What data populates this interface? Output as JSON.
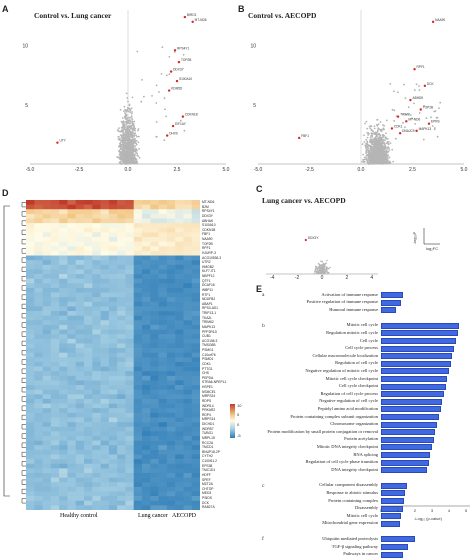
{
  "panels": {
    "a": {
      "letter": "A",
      "title": "Control vs. Lung cancer",
      "x_ticks": [
        "-5.0",
        "-2.5",
        "0.0",
        "2.5",
        "5.0"
      ],
      "y_ticks": [
        "5",
        "10"
      ],
      "genes": [
        "BIRC5",
        "MT-ND6",
        "RPS4Y1",
        "TOP2B",
        "DDX3Y",
        "S100A10",
        "KDM5D",
        "CDKN1B",
        "EIF1AY",
        "UTY",
        "DHX9"
      ]
    },
    "b": {
      "letter": "B",
      "title": "Control vs. AECOPD",
      "x_ticks": [
        "-5.0",
        "-2.5",
        "0.0",
        "2.5",
        "5.0"
      ],
      "y_ticks": [
        "5",
        "10"
      ],
      "genes": [
        "NAA90",
        "RPF1",
        "DCK",
        "ABHD5",
        "TOP2B",
        "TRIM8",
        "MT-ND6",
        "CDK1",
        "FBF1",
        "MAPK13",
        "EPRS",
        "DNAJC9"
      ]
    },
    "c": {
      "letter": "C",
      "title": "Lung cancer vs. AECOPD",
      "x_ticks": [
        "-4",
        "-2",
        "0",
        "2",
        "4"
      ],
      "axis_y_label": "-log₁₀P",
      "axis_x_label": "log₂FC",
      "gene": "DDX3Y"
    },
    "d": {
      "letter": "D",
      "group_labels": [
        "Healthy control",
        "Lung cancer",
        "AECOPD"
      ],
      "legend_ticks": [
        "10",
        "5",
        "0",
        "-5"
      ],
      "genes": [
        "MT-ND6",
        "B2M",
        "RPS4Y1",
        "DDX3Y",
        "ABHAK",
        "S100A10",
        "CDKN1B",
        "FBF1",
        "NAA90",
        "TOP2B",
        "RPF1",
        "HJURP-3",
        "ACO10536.3",
        "UTR2",
        "HMGB2",
        "KLF7-IT1",
        "NBPF12",
        "QTF1",
        "DCAF16",
        "WBP11",
        "RTF1",
        "NDUFB2",
        "ABAP1",
        "RPS3-AS1",
        "TRIP13-1",
        "TKA2L",
        "TRIM62",
        "MAPK13",
        "PPP2R1D",
        "CUB1",
        "ACO156.3",
        "TMSG6B",
        "PSMG1",
        "C10orf76",
        "PSMD1",
        "CDK1",
        "PTTG1",
        "CHS",
        "PEPDA",
        "STRA6-NPEPL1",
        "HSPE1",
        "NSMCE1",
        "MRPS24",
        "RDPS",
        "WDR14",
        "PRKAR2",
        "RDP4",
        "MRPS14",
        "DICHD1",
        "WDR57",
        "TUBG1",
        "MRPL15",
        "RCC2A",
        "TMCD1",
        "BNUP18-2P",
        "CYTH2",
        "C100f11.2",
        "EPS38",
        "TMC1D1",
        "HDFF",
        "SPEF",
        "MZT2A",
        "CHTOP",
        "MED3",
        "PSIDS",
        "DCK",
        "RAB27A"
      ]
    },
    "e": {
      "letter": "E",
      "axis_label": "-Log₁₀ (p-value)",
      "groups": [
        {
          "sub": "a",
          "terms": [
            "Activation of immune response",
            "Positive regulation of immune response",
            "Humoral immune response"
          ],
          "values": [
            1.3,
            1.2,
            0.9
          ]
        },
        {
          "sub": "b",
          "terms": [
            "Mitotic cell cycle",
            "Regulation mitotic cell cycle",
            "Cell cycle",
            "Cell cycle process",
            "Cellular macromolecule localization",
            "Regulation of cell cycle",
            "Negative regulation of mitotic cell cycle",
            "Mitotic cell cycle checkpoint",
            "Cell cycle checkpoint",
            "Regulation of cell cycle process",
            "Negative regulation of cell cycle",
            "Peptidyl amino acid modification",
            "Protein containing complex subunit organization",
            "Chromosome organization",
            "Protein modification by small protein conjugation or removal",
            "Protein acetylation",
            "Mitotic DNA integrity checkpoint",
            "RNA splicing",
            "Regulation of cell cycle phase transition",
            "DNA integrity checkpoint"
          ],
          "values": [
            4.6,
            4.5,
            4.4,
            4.3,
            4.2,
            4.1,
            4.0,
            3.9,
            3.8,
            3.7,
            3.6,
            3.5,
            3.4,
            3.3,
            3.2,
            3.1,
            3.0,
            2.9,
            2.8,
            2.7
          ]
        },
        {
          "sub": "c",
          "terms": [
            "Cellular component disassembly",
            "Response to abiotic stimulus",
            "Protein containing complex",
            "Disassembly",
            "Mitotic cell cycle",
            "Mitochondrial gene expression"
          ],
          "values": [
            1.5,
            1.4,
            1.35,
            1.3,
            1.2,
            1.1
          ]
        },
        {
          "sub": "f",
          "terms": [
            "Ubiquitin mediated proteolysis",
            "TGF-β signaling pathway",
            "Pathways in cancer"
          ],
          "values": [
            2.0,
            1.6,
            1.3
          ]
        }
      ],
      "x_ticks": [
        "0",
        "1",
        "2",
        "3",
        "4",
        "5"
      ]
    }
  }
}
